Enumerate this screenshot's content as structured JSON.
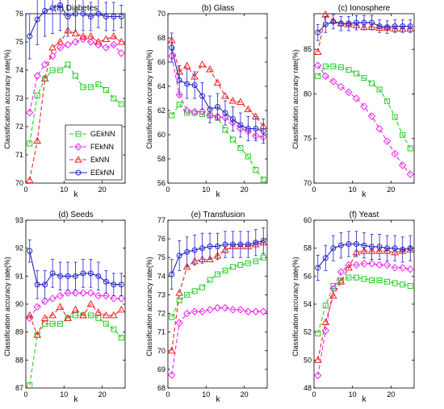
{
  "chart_data": [
    {
      "type": "line",
      "title": "(a) Diabetes",
      "xlabel": "k",
      "ylabel": "Classification accuracy rate(%)",
      "xlim": [
        0,
        26
      ],
      "ylim": [
        70,
        76
      ],
      "xticks": [
        0,
        10,
        20
      ],
      "yticks": [
        70,
        71,
        72,
        73,
        74,
        75,
        76
      ],
      "legend": {
        "position": "bottom-left",
        "entries": [
          "GEkNN",
          "FEkNN",
          "EkNN",
          "EEkNN"
        ]
      },
      "x": [
        1,
        3,
        5,
        7,
        9,
        11,
        13,
        15,
        17,
        19,
        21,
        23,
        25
      ],
      "series": [
        {
          "name": "GEkNN",
          "color": "#22cc22",
          "marker": "square",
          "values": [
            71.4,
            73.1,
            73.7,
            74.0,
            74.0,
            74.2,
            73.8,
            73.4,
            73.4,
            73.5,
            73.3,
            73.0,
            72.8
          ]
        },
        {
          "name": "FEkNN",
          "color": "#ee22ee",
          "marker": "diamond",
          "values": [
            72.5,
            73.8,
            74.2,
            74.5,
            74.8,
            74.9,
            75.0,
            75.1,
            75.0,
            74.9,
            74.8,
            74.9,
            74.6
          ]
        },
        {
          "name": "EkNN",
          "color": "#ee2222",
          "marker": "triangle",
          "values": [
            70.1,
            71.5,
            73.7,
            74.8,
            75.0,
            75.4,
            75.3,
            75.2,
            75.2,
            75.0,
            75.1,
            75.2,
            75.0
          ]
        },
        {
          "name": "EEkNN",
          "color": "#2222cc",
          "marker": "circle",
          "values": [
            75.2,
            75.8,
            76.1,
            76.2,
            76.3,
            75.9,
            76.0,
            76.0,
            75.9,
            76.0,
            75.9,
            75.9,
            75.9
          ],
          "err": [
            0.8,
            0.9,
            0.9,
            0.9,
            0.9,
            0.7,
            0.6,
            0.6,
            0.5,
            0.5,
            0.5,
            0.5,
            0.4
          ]
        }
      ]
    },
    {
      "type": "line",
      "title": "(b) Glass",
      "xlabel": "k",
      "ylabel": "Classification accuracy rate(%)",
      "xlim": [
        0,
        26
      ],
      "ylim": [
        56,
        70
      ],
      "xticks": [
        0,
        10,
        20
      ],
      "yticks": [
        56,
        58,
        60,
        62,
        64,
        66,
        68,
        70
      ],
      "x": [
        1,
        3,
        5,
        7,
        9,
        11,
        13,
        15,
        17,
        19,
        21,
        23,
        25
      ],
      "series": [
        {
          "name": "GEkNN",
          "color": "#22cc22",
          "marker": "square",
          "values": [
            61.6,
            62.5,
            61.8,
            61.8,
            61.7,
            61.6,
            61.4,
            60.4,
            59.6,
            58.9,
            58.2,
            57.1,
            56.3
          ]
        },
        {
          "name": "FEkNN",
          "color": "#ee22ee",
          "marker": "diamond",
          "values": [
            66.5,
            63.3,
            62.0,
            61.9,
            61.9,
            61.6,
            61.5,
            61.4,
            61.0,
            60.5,
            60.3,
            59.9,
            59.8
          ]
        },
        {
          "name": "EkNN",
          "color": "#ee2222",
          "marker": "triangle",
          "values": [
            67.8,
            65.2,
            65.7,
            64.8,
            65.8,
            65.4,
            64.3,
            63.2,
            62.8,
            62.7,
            62.1,
            61.5,
            60.7
          ]
        },
        {
          "name": "EEkNN",
          "color": "#2222cc",
          "marker": "circle",
          "values": [
            67.2,
            64.5,
            64.2,
            64.1,
            63.2,
            62.1,
            62.3,
            61.8,
            61.3,
            60.8,
            60.5,
            60.5,
            60.3
          ],
          "err": [
            1.2,
            1.2,
            1.2,
            1.1,
            1.1,
            1.1,
            1.1,
            1.0,
            1.0,
            1.0,
            1.0,
            1.0,
            1.0
          ]
        }
      ]
    },
    {
      "type": "line",
      "title": "(c) Ionosphere",
      "xlabel": "k",
      "ylabel": "Classification accuracy rate(%)",
      "xlim": [
        0,
        26
      ],
      "ylim": [
        70,
        89
      ],
      "xticks": [
        0,
        10,
        20
      ],
      "yticks": [
        70,
        75,
        80,
        85
      ],
      "x": [
        1,
        3,
        5,
        7,
        9,
        11,
        13,
        15,
        17,
        19,
        21,
        23,
        25
      ],
      "series": [
        {
          "name": "GEkNN",
          "color": "#22cc22",
          "marker": "square",
          "values": [
            82.0,
            83.1,
            83.1,
            83.0,
            82.7,
            82.3,
            81.8,
            81.2,
            80.5,
            79.2,
            77.4,
            75.4,
            73.9
          ]
        },
        {
          "name": "FEkNN",
          "color": "#ee22ee",
          "marker": "diamond",
          "values": [
            83.2,
            82.0,
            81.4,
            80.8,
            80.2,
            79.5,
            78.6,
            77.5,
            76.1,
            74.7,
            73.3,
            72.0,
            71.0
          ]
        },
        {
          "name": "EkNN",
          "color": "#ee2222",
          "marker": "triangle",
          "values": [
            84.7,
            88.9,
            88.2,
            87.9,
            87.8,
            87.7,
            87.5,
            87.5,
            87.4,
            87.4,
            87.3,
            87.3,
            87.3
          ]
        },
        {
          "name": "EEkNN",
          "color": "#2222cc",
          "marker": "circle",
          "values": [
            86.9,
            87.8,
            88.1,
            87.9,
            87.9,
            88.0,
            88.0,
            88.0,
            87.6,
            87.5,
            87.6,
            87.6,
            87.6
          ],
          "err": [
            0.9,
            0.9,
            0.8,
            0.8,
            0.8,
            0.8,
            0.8,
            0.8,
            0.7,
            0.7,
            0.7,
            0.7,
            0.7
          ]
        }
      ]
    },
    {
      "type": "line",
      "title": "(d) Seeds",
      "xlabel": "k",
      "ylabel": "Classification accuracy rate(%)",
      "xlim": [
        0,
        26
      ],
      "ylim": [
        87,
        93
      ],
      "xticks": [
        0,
        10,
        20
      ],
      "yticks": [
        87,
        88,
        89,
        90,
        91,
        92,
        93
      ],
      "x": [
        1,
        3,
        5,
        7,
        9,
        11,
        13,
        15,
        17,
        19,
        21,
        23,
        25
      ],
      "series": [
        {
          "name": "GEkNN",
          "color": "#22cc22",
          "marker": "square",
          "values": [
            87.1,
            88.9,
            89.3,
            89.3,
            89.3,
            89.5,
            89.6,
            89.6,
            89.6,
            89.5,
            89.3,
            89.1,
            88.8
          ]
        },
        {
          "name": "FEkNN",
          "color": "#ee22ee",
          "marker": "diamond",
          "values": [
            89.5,
            89.9,
            90.1,
            90.2,
            90.3,
            90.4,
            90.4,
            90.4,
            90.4,
            90.3,
            90.3,
            90.2,
            90.2
          ]
        },
        {
          "name": "EkNN",
          "color": "#ee2222",
          "marker": "triangle",
          "values": [
            89.6,
            88.9,
            89.5,
            89.6,
            89.9,
            89.5,
            89.8,
            89.6,
            90.0,
            89.7,
            89.6,
            89.6,
            89.8
          ]
        },
        {
          "name": "EEkNN",
          "color": "#2222cc",
          "marker": "circle",
          "values": [
            91.9,
            90.7,
            90.7,
            91.1,
            91.0,
            91.0,
            91.0,
            91.1,
            91.1,
            91.0,
            90.8,
            90.7,
            90.7
          ],
          "err": [
            0.4,
            0.5,
            0.5,
            0.5,
            0.5,
            0.5,
            0.5,
            0.5,
            0.5,
            0.5,
            0.4,
            0.4,
            0.4
          ]
        }
      ]
    },
    {
      "type": "line",
      "title": "(e) Transfusion",
      "xlabel": "k",
      "ylabel": "Classification accuracy rate(%)",
      "xlim": [
        0,
        26
      ],
      "ylim": [
        68,
        77
      ],
      "xticks": [
        0,
        10,
        20
      ],
      "yticks": [
        68,
        69,
        70,
        71,
        72,
        73,
        74,
        75,
        76,
        77
      ],
      "x": [
        1,
        3,
        5,
        7,
        9,
        11,
        13,
        15,
        17,
        19,
        21,
        23,
        25
      ],
      "series": [
        {
          "name": "GEkNN",
          "color": "#22cc22",
          "marker": "square",
          "values": [
            71.8,
            72.7,
            73.0,
            73.2,
            73.4,
            73.8,
            74.1,
            74.3,
            74.5,
            74.6,
            74.7,
            74.8,
            75.0
          ]
        },
        {
          "name": "FEkNN",
          "color": "#ee22ee",
          "marker": "diamond",
          "values": [
            68.7,
            71.5,
            72.0,
            72.1,
            72.1,
            72.2,
            72.3,
            72.3,
            72.2,
            72.2,
            72.1,
            72.1,
            72.1
          ]
        },
        {
          "name": "EkNN",
          "color": "#ee2222",
          "marker": "triangle",
          "values": [
            70.0,
            73.1,
            74.5,
            74.8,
            74.9,
            74.9,
            75.1,
            75.4,
            75.6,
            75.6,
            75.6,
            75.7,
            75.8
          ]
        },
        {
          "name": "EEkNN",
          "color": "#2222cc",
          "marker": "circle",
          "values": [
            74.1,
            75.1,
            75.3,
            75.4,
            75.5,
            75.6,
            75.6,
            75.7,
            75.7,
            75.7,
            75.7,
            75.8,
            75.9
          ],
          "err": [
            0.8,
            0.8,
            0.8,
            0.8,
            0.8,
            0.7,
            0.7,
            0.7,
            0.7,
            0.7,
            0.7,
            0.7,
            0.7
          ]
        }
      ]
    },
    {
      "type": "line",
      "title": "(f) Yeast",
      "xlabel": "k",
      "ylabel": "Classification accuracy rate(%)",
      "xlim": [
        0,
        26
      ],
      "ylim": [
        48,
        60
      ],
      "xticks": [
        0,
        10,
        20
      ],
      "yticks": [
        48,
        50,
        52,
        54,
        56,
        58,
        60
      ],
      "x": [
        1,
        3,
        5,
        7,
        9,
        11,
        13,
        15,
        17,
        19,
        21,
        23,
        25
      ],
      "series": [
        {
          "name": "GEkNN",
          "color": "#22cc22",
          "marker": "square",
          "values": [
            51.9,
            53.9,
            55.3,
            55.7,
            55.9,
            55.9,
            55.8,
            55.7,
            55.7,
            55.6,
            55.5,
            55.4,
            55.3
          ]
        },
        {
          "name": "FEkNN",
          "color": "#ee22ee",
          "marker": "diamond",
          "values": [
            48.9,
            52.1,
            55.1,
            56.3,
            56.8,
            56.8,
            56.9,
            56.9,
            56.8,
            56.8,
            56.6,
            56.6,
            56.5
          ]
        },
        {
          "name": "EkNN",
          "color": "#ee2222",
          "marker": "triangle",
          "values": [
            50.0,
            52.7,
            54.6,
            55.6,
            56.6,
            57.7,
            57.8,
            57.8,
            57.8,
            57.8,
            57.7,
            57.8,
            57.9
          ]
        },
        {
          "name": "EEkNN",
          "color": "#2222cc",
          "marker": "circle",
          "values": [
            56.6,
            57.3,
            58.0,
            58.2,
            58.3,
            58.3,
            58.2,
            58.1,
            58.1,
            58.0,
            58.0,
            57.9,
            58.0
          ],
          "err": [
            0.9,
            0.9,
            0.9,
            0.9,
            0.9,
            0.9,
            0.9,
            0.9,
            0.9,
            0.9,
            0.9,
            0.9,
            0.9
          ]
        }
      ]
    }
  ]
}
